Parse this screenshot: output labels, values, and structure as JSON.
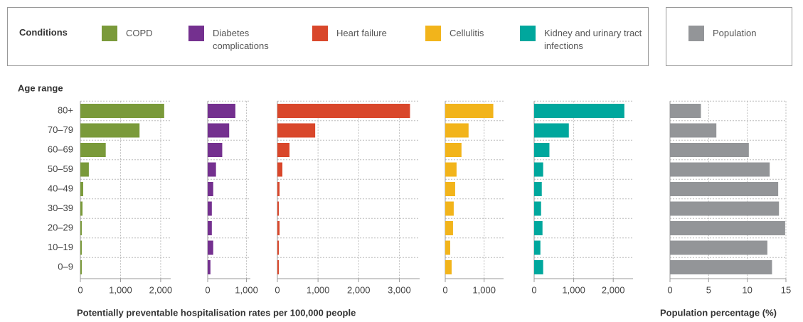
{
  "legend_title": "Conditions",
  "chart_data": [
    {
      "type": "bar",
      "orientation": "horizontal",
      "ylabel": "Age range",
      "xlabel": "Potentially preventable hospitalisation rates per 100,000 people",
      "categories": [
        "80+",
        "70–79",
        "60–69",
        "50–59",
        "40–49",
        "30–39",
        "20–29",
        "10–19",
        "0–9"
      ],
      "series": [
        {
          "name": "COPD",
          "color": "#7a9a3a",
          "values": [
            2088,
            1474,
            632,
            211,
            70,
            53,
            35,
            35,
            35
          ]
        }
      ],
      "xlim": [
        0,
        2250
      ],
      "xticks": [
        0,
        {
          "value": 1000,
          "label": "1,000"
        },
        {
          "value": 2000,
          "label": "2,000"
        }
      ],
      "grid": true
    },
    {
      "type": "bar",
      "orientation": "horizontal",
      "series": [
        {
          "name": "Diabetes complications",
          "color": "#74308f",
          "values": [
            714,
            554,
            375,
            214,
            143,
            107,
            107,
            143,
            71
          ]
        }
      ],
      "xlim": [
        0,
        1100
      ],
      "xticks": [
        0,
        {
          "value": 1000,
          "label": "1,000"
        }
      ],
      "grid": true
    },
    {
      "type": "bar",
      "orientation": "horizontal",
      "series": [
        {
          "name": "Heart failure",
          "color": "#d9472b",
          "values": [
            3263,
            930,
            298,
            123,
            53,
            35,
            53,
            35,
            35
          ]
        }
      ],
      "xlim": [
        0,
        3500
      ],
      "xticks": [
        0,
        {
          "value": 1000,
          "label": "1,000"
        },
        {
          "value": 2000,
          "label": "2,000"
        },
        {
          "value": 3000,
          "label": "3,000"
        }
      ],
      "grid": true
    },
    {
      "type": "bar",
      "orientation": "horizontal",
      "series": [
        {
          "name": "Cellulitis",
          "color": "#f2b41b",
          "values": [
            1236,
            600,
            418,
            291,
            255,
            218,
            200,
            127,
            164
          ]
        }
      ],
      "xlim": [
        0,
        1500
      ],
      "xticks": [
        0,
        {
          "value": 1000,
          "label": "1,000"
        }
      ],
      "grid": true
    },
    {
      "type": "bar",
      "orientation": "horizontal",
      "series": [
        {
          "name": "Kidney and urinary tract infections",
          "color": "#00a79d",
          "values": [
            2281,
            877,
            386,
            228,
            193,
            175,
            211,
            158,
            228
          ]
        }
      ],
      "xlim": [
        0,
        2500
      ],
      "xticks": [
        0,
        {
          "value": 1000,
          "label": "1,000"
        },
        {
          "value": 2000,
          "label": "2,000"
        }
      ],
      "grid": true
    },
    {
      "type": "bar",
      "orientation": "horizontal",
      "xlabel": "Population percentage (%)",
      "series": [
        {
          "name": "Population",
          "color": "#939598",
          "values": [
            4.0,
            6.0,
            10.2,
            12.9,
            14.0,
            14.1,
            14.9,
            12.6,
            13.2
          ]
        }
      ],
      "xlim": [
        0,
        15
      ],
      "xticks": [
        0,
        5,
        10,
        15
      ],
      "grid": true
    }
  ]
}
